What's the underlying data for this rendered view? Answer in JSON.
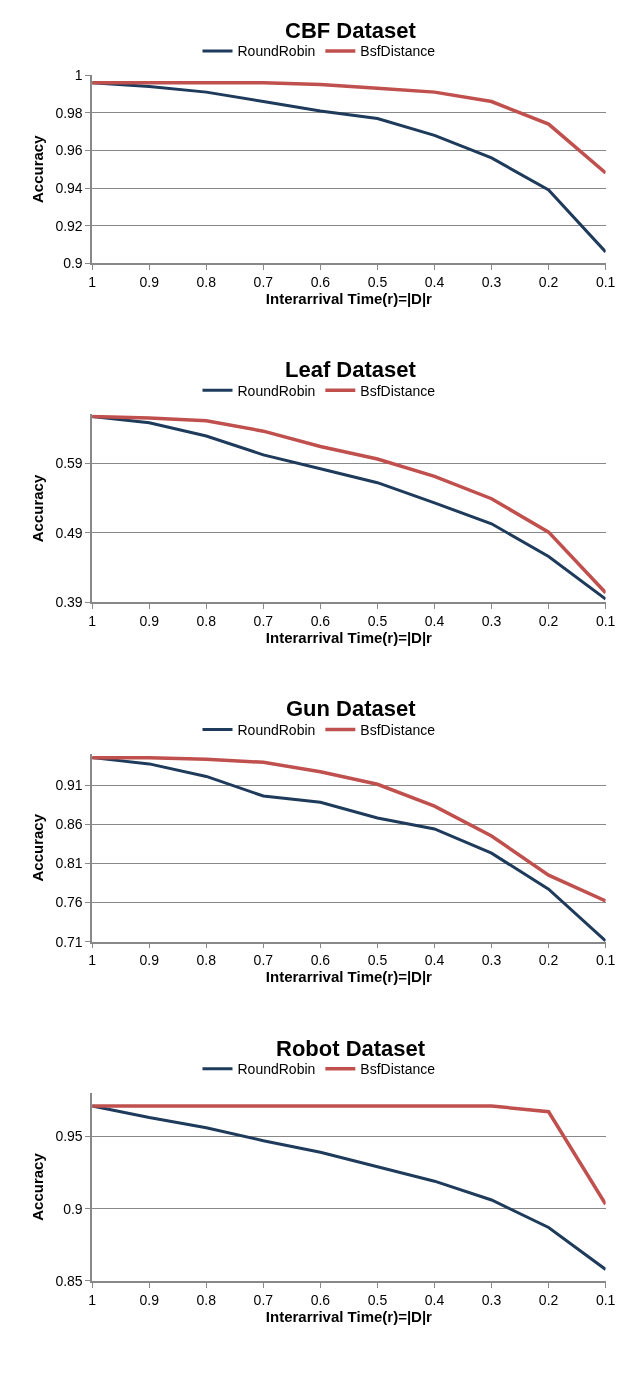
{
  "chart_data": [
    {
      "type": "line",
      "title": "CBF Dataset",
      "xlabel": "Interarrival Time(r)=|D|r",
      "ylabel": "Accuracy",
      "categories": [
        "1",
        "0.9",
        "0.8",
        "0.7",
        "0.6",
        "0.5",
        "0.4",
        "0.3",
        "0.2",
        "0.1"
      ],
      "ylim": [
        0.9,
        1
      ],
      "yticks": [
        0.9,
        0.92,
        0.94,
        0.96,
        0.98,
        1
      ],
      "grid": "y",
      "legend": "top",
      "marker": "none",
      "line_style": "solid",
      "series": [
        {
          "name": "RoundRobin",
          "color": "#1f3b5c",
          "values": [
            0.996,
            0.994,
            0.991,
            0.986,
            0.981,
            0.977,
            0.968,
            0.956,
            0.939,
            0.906
          ]
        },
        {
          "name": "BsfDistance",
          "color": "#c0504d",
          "values": [
            0.996,
            0.996,
            0.996,
            0.996,
            0.995,
            0.993,
            0.991,
            0.986,
            0.974,
            0.948
          ]
        }
      ]
    },
    {
      "type": "line",
      "title": "Leaf Dataset",
      "xlabel": "Interarrival Time(r)=|D|r",
      "ylabel": "Accuracy",
      "categories": [
        "1",
        "0.9",
        "0.8",
        "0.7",
        "0.6",
        "0.5",
        "0.4",
        "0.3",
        "0.2",
        "0.1"
      ],
      "ylim": [
        0.39,
        0.66
      ],
      "yticks": [
        0.39,
        0.49,
        0.59
      ],
      "grid": "y",
      "legend": "top",
      "marker": "none",
      "line_style": "solid",
      "series": [
        {
          "name": "RoundRobin",
          "color": "#1f3b5c",
          "values": [
            0.657,
            0.648,
            0.629,
            0.602,
            0.582,
            0.562,
            0.533,
            0.503,
            0.456,
            0.395
          ]
        },
        {
          "name": "BsfDistance",
          "color": "#c0504d",
          "values": [
            0.657,
            0.655,
            0.651,
            0.636,
            0.614,
            0.596,
            0.571,
            0.539,
            0.491,
            0.404
          ]
        }
      ]
    },
    {
      "type": "line",
      "title": "Gun Dataset",
      "xlabel": "Interarrival Time(r)=|D|r",
      "ylabel": "Accuracy",
      "categories": [
        "1",
        "0.9",
        "0.8",
        "0.7",
        "0.6",
        "0.5",
        "0.4",
        "0.3",
        "0.2",
        "0.1"
      ],
      "ylim": [
        0.71,
        0.95
      ],
      "yticks": [
        0.71,
        0.76,
        0.81,
        0.86,
        0.91
      ],
      "grid": "y",
      "legend": "top",
      "marker": "none",
      "line_style": "solid",
      "series": [
        {
          "name": "RoundRobin",
          "color": "#1f3b5c",
          "values": [
            0.945,
            0.937,
            0.921,
            0.896,
            0.888,
            0.868,
            0.854,
            0.823,
            0.777,
            0.711
          ]
        },
        {
          "name": "BsfDistance",
          "color": "#c0504d",
          "values": [
            0.945,
            0.945,
            0.943,
            0.939,
            0.927,
            0.911,
            0.883,
            0.845,
            0.795,
            0.762
          ]
        }
      ]
    },
    {
      "type": "line",
      "title": "Robot Dataset",
      "xlabel": "Interarrival Time(r)=|D|r",
      "ylabel": "Accuracy",
      "categories": [
        "1",
        "0.9",
        "0.8",
        "0.7",
        "0.6",
        "0.5",
        "0.4",
        "0.3",
        "0.2",
        "0.1"
      ],
      "ylim": [
        0.85,
        0.98
      ],
      "yticks": [
        0.85,
        0.9,
        0.95
      ],
      "grid": "y",
      "legend": "top",
      "marker": "none",
      "line_style": "solid",
      "series": [
        {
          "name": "RoundRobin",
          "color": "#1f3b5c",
          "values": [
            0.971,
            0.963,
            0.956,
            0.947,
            0.939,
            0.929,
            0.919,
            0.906,
            0.887,
            0.858
          ]
        },
        {
          "name": "BsfDistance",
          "color": "#c0504d",
          "values": [
            0.971,
            0.971,
            0.971,
            0.971,
            0.971,
            0.971,
            0.971,
            0.971,
            0.967,
            0.903
          ]
        }
      ]
    }
  ]
}
